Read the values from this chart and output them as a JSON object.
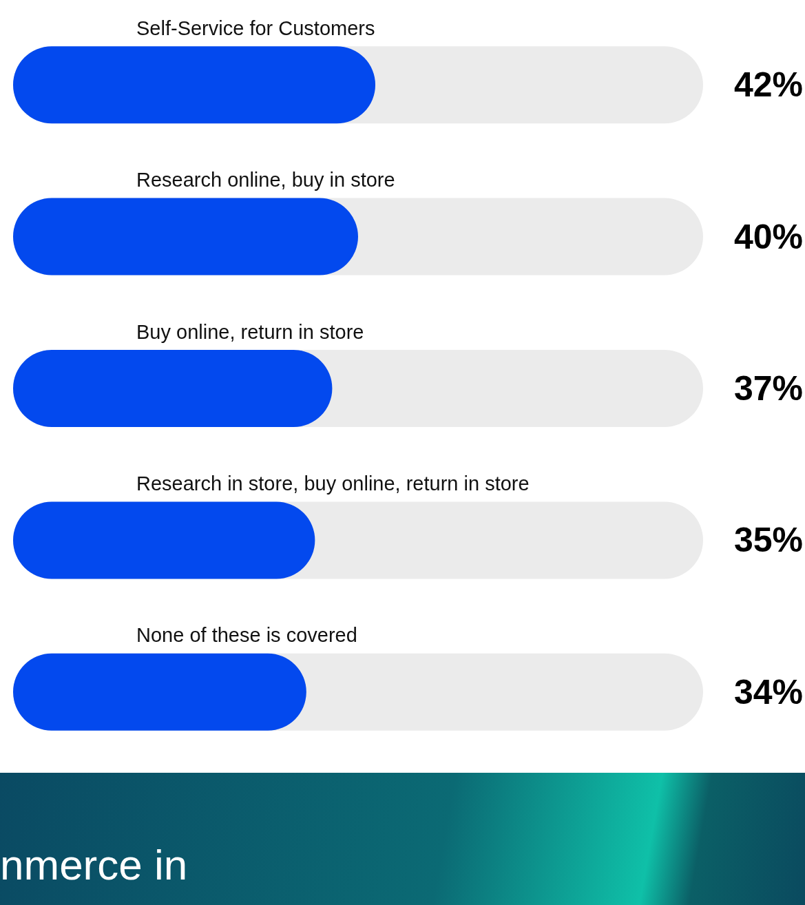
{
  "chart_data": {
    "type": "bar",
    "orientation": "horizontal",
    "categories": [
      "Self-Service for Customers",
      "Research online, buy in store",
      "Buy online, return in store",
      "Research in store, buy online, return in store",
      "None of these is covered"
    ],
    "values": [
      42,
      40,
      37,
      35,
      34
    ],
    "value_labels": [
      "42%",
      "40%",
      "37%",
      "35%",
      "34%"
    ],
    "color": "#0349ee",
    "xlim": [
      0,
      80
    ],
    "annotations": [
      "nmerce in"
    ]
  }
}
